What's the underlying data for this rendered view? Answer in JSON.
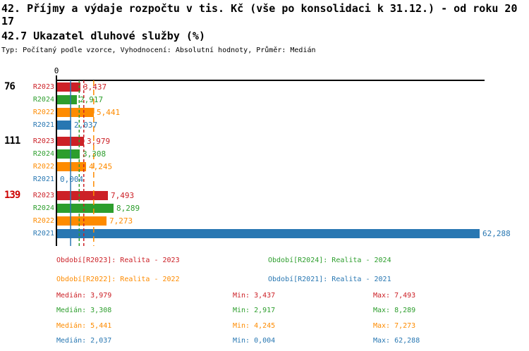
{
  "header": {
    "title_line1": "42. Příjmy a výdaje rozpočtu v tis. Kč (vše po konsolidaci k 31.12.) - od roku 20",
    "title_line2": "17",
    "indicator_title": "42.7 Ukazatel dluhové služby (%)",
    "meta": "Typ: Počítaný podle vzorce, Vyhodnocení: Absolutní hodnoty, Průměr: Medián"
  },
  "chart_data": {
    "type": "bar",
    "orientation": "horizontal",
    "axis": {
      "origin_label": "0",
      "max": 63
    },
    "series": [
      {
        "id": "R2023",
        "name": "Realita - 2023",
        "color": "#cc2127",
        "line_style": "dashed",
        "median": 3.979,
        "legend": "Období[R2023]: Realita - 2023",
        "stats": {
          "median": "3,979",
          "min": "3,437",
          "max": "7,493"
        }
      },
      {
        "id": "R2024",
        "name": "Realita - 2024",
        "color": "#2d9e2d",
        "line_style": "dashed",
        "median": 3.308,
        "legend": "Období[R2024]: Realita - 2024",
        "stats": {
          "median": "3,308",
          "min": "2,917",
          "max": "8,289"
        }
      },
      {
        "id": "R2022",
        "name": "Realita - 2022",
        "color": "#fe8b00",
        "line_style": "longdash",
        "median": 5.441,
        "legend": "Období[R2022]: Realita - 2022",
        "stats": {
          "median": "5,441",
          "min": "4,245",
          "max": "7,273"
        }
      },
      {
        "id": "R2021",
        "name": "Realita - 2021",
        "color": "#2877b2",
        "line_style": "solid",
        "median": 2.037,
        "legend": "Období[R2021]: Realita - 2021",
        "stats": {
          "median": "2,037",
          "min": "0,004",
          "max": "62,288"
        }
      }
    ],
    "stats_labels": {
      "median": "Medián",
      "min": "Min",
      "max": "Max"
    },
    "groups": [
      {
        "label": "76",
        "label_color": "#000000",
        "bars": [
          {
            "series": "R2023",
            "value": 3.437,
            "label": "3,437"
          },
          {
            "series": "R2024",
            "value": 2.917,
            "label": "2,917"
          },
          {
            "series": "R2022",
            "value": 5.441,
            "label": "5,441"
          },
          {
            "series": "R2021",
            "value": 2.037,
            "label": "2,037"
          }
        ]
      },
      {
        "label": "111",
        "label_color": "#000000",
        "bars": [
          {
            "series": "R2023",
            "value": 3.979,
            "label": "3,979"
          },
          {
            "series": "R2024",
            "value": 3.308,
            "label": "3,308"
          },
          {
            "series": "R2022",
            "value": 4.245,
            "label": "4,245"
          },
          {
            "series": "R2021",
            "value": 0.004,
            "label": "0,004"
          }
        ]
      },
      {
        "label": "139",
        "label_color": "#cc0000",
        "bars": [
          {
            "series": "R2023",
            "value": 7.493,
            "label": "7,493"
          },
          {
            "series": "R2024",
            "value": 8.289,
            "label": "8,289"
          },
          {
            "series": "R2022",
            "value": 7.273,
            "label": "7,273"
          },
          {
            "series": "R2021",
            "value": 62.288,
            "label": "62,288"
          }
        ]
      }
    ]
  }
}
